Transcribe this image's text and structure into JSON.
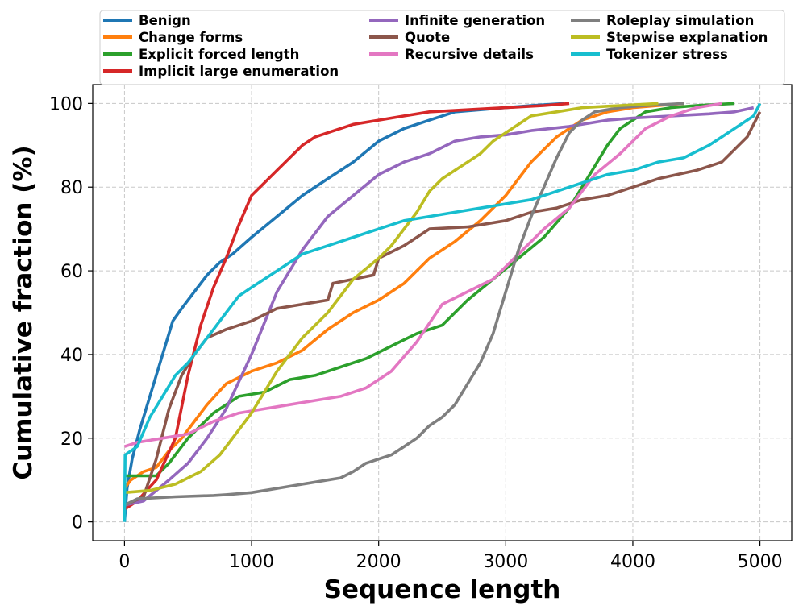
{
  "chart_data": {
    "type": "line",
    "title": "",
    "xlabel": "Sequence length",
    "ylabel": "Cumulative fraction (%)",
    "xlim": [
      -250,
      5250
    ],
    "ylim": [
      -4.5,
      104.5
    ],
    "xticks": [
      0,
      1000,
      2000,
      3000,
      4000,
      5000
    ],
    "yticks": [
      0,
      20,
      40,
      60,
      80,
      100
    ],
    "grid": true,
    "legend_position": "top",
    "series": [
      {
        "name": "Benign",
        "color": "#1f77b4",
        "x": [
          0,
          20,
          60,
          120,
          200,
          300,
          380,
          450,
          550,
          650,
          750,
          850,
          1000,
          1200,
          1400,
          1600,
          1800,
          2000,
          2200,
          2400,
          2600,
          2800,
          3000,
          3200,
          3460
        ],
        "y": [
          0,
          8,
          15,
          22,
          30,
          40,
          48,
          51,
          55,
          59,
          62,
          64,
          68,
          73,
          78,
          82,
          86,
          91,
          94,
          96,
          98,
          98.5,
          99,
          99.5,
          100
        ]
      },
      {
        "name": "Change forms",
        "color": "#ff7f0e",
        "x": [
          0,
          50,
          150,
          250,
          350,
          450,
          550,
          650,
          800,
          1000,
          1200,
          1400,
          1600,
          1800,
          2000,
          2200,
          2400,
          2600,
          2800,
          3000,
          3200,
          3400,
          3600,
          3800,
          4000,
          4200,
          4400
        ],
        "y": [
          8,
          10,
          12,
          13,
          17,
          20,
          24,
          28,
          33,
          36,
          38,
          41,
          46,
          50,
          53,
          57,
          63,
          67,
          72,
          78,
          86,
          92,
          96,
          98,
          99,
          99.5,
          100
        ]
      },
      {
        "name": "Explicit forced length",
        "color": "#2ca02c",
        "x": [
          0,
          250,
          350,
          500,
          700,
          900,
          1100,
          1300,
          1500,
          1700,
          1900,
          2100,
          2300,
          2500,
          2700,
          2900,
          3100,
          3300,
          3500,
          3700,
          3800,
          3900,
          4100,
          4300,
          4500,
          4800
        ],
        "y": [
          11,
          11,
          14,
          20,
          26,
          30,
          31,
          34,
          35,
          37,
          39,
          42,
          45,
          47,
          53,
          58,
          63,
          68,
          75,
          85,
          90,
          94,
          98,
          99,
          99.5,
          100
        ]
      },
      {
        "name": "Implicit large enumeration",
        "color": "#d62728",
        "x": [
          0,
          100,
          250,
          400,
          500,
          600,
          700,
          800,
          900,
          1000,
          1100,
          1200,
          1300,
          1400,
          1500,
          1600,
          1800,
          2000,
          2200,
          2400,
          2700,
          3000,
          3300,
          3500
        ],
        "y": [
          3,
          5,
          10,
          20,
          35,
          47,
          56,
          63,
          71,
          78,
          81,
          84,
          87,
          90,
          92,
          93,
          95,
          96,
          97,
          98,
          98.5,
          99,
          99.5,
          100
        ]
      },
      {
        "name": "Infinite generation",
        "color": "#9467bd",
        "x": [
          0,
          150,
          350,
          500,
          650,
          800,
          1000,
          1200,
          1400,
          1600,
          1800,
          2000,
          2200,
          2400,
          2600,
          2800,
          3000,
          3200,
          3500,
          3800,
          4000,
          4300,
          4600,
          4800,
          4950
        ],
        "y": [
          4,
          5,
          10,
          14,
          20,
          27,
          40,
          55,
          65,
          73,
          78,
          83,
          86,
          88,
          91,
          92,
          92.5,
          93.5,
          94.5,
          96,
          96.5,
          97,
          97.5,
          98,
          99
        ]
      },
      {
        "name": "Quote",
        "color": "#8c564b",
        "x": [
          0,
          150,
          250,
          350,
          450,
          550,
          650,
          800,
          1000,
          1200,
          1400,
          1600,
          1640,
          1800,
          1960,
          2000,
          2200,
          2400,
          2700,
          3000,
          3200,
          3400,
          3600,
          3800,
          4000,
          4200,
          4500,
          4700,
          4900,
          5000
        ],
        "y": [
          4,
          6,
          15,
          27,
          35,
          40,
          44,
          46,
          48,
          51,
          52,
          53,
          57,
          58,
          59,
          63,
          66,
          70,
          70.5,
          72,
          74,
          75,
          77,
          78,
          80,
          82,
          84,
          86,
          92,
          98
        ]
      },
      {
        "name": "Recursive details",
        "color": "#e377c2",
        "x": [
          0,
          100,
          300,
          500,
          700,
          900,
          1100,
          1300,
          1500,
          1700,
          1900,
          2100,
          2300,
          2500,
          2700,
          2900,
          3100,
          3300,
          3500,
          3700,
          3900,
          4100,
          4300,
          4500,
          4700
        ],
        "y": [
          18,
          19,
          20,
          21,
          24,
          26,
          27,
          28,
          29,
          30,
          32,
          36,
          43,
          52,
          55,
          58,
          64,
          70,
          75,
          83,
          88,
          94,
          97,
          99,
          100
        ]
      },
      {
        "name": "Roleplay simulation",
        "color": "#7f7f7f",
        "x": [
          0,
          100,
          400,
          700,
          800,
          1000,
          1200,
          1400,
          1600,
          1700,
          1800,
          1900,
          2000,
          2100,
          2200,
          2300,
          2400,
          2500,
          2600,
          2700,
          2800,
          2900,
          3000,
          3100,
          3200,
          3300,
          3400,
          3500,
          3600,
          3700,
          3900,
          4100,
          4400
        ],
        "y": [
          4,
          5.5,
          6,
          6.3,
          6.5,
          7,
          8,
          9,
          10,
          10.5,
          12,
          14,
          15,
          16,
          18,
          20,
          23,
          25,
          28,
          33,
          38,
          45,
          55,
          65,
          73,
          80,
          87,
          93,
          96,
          98,
          99,
          99.5,
          100
        ]
      },
      {
        "name": "Stepwise explanation",
        "color": "#bcbd22",
        "x": [
          0,
          200,
          400,
          600,
          750,
          900,
          1000,
          1100,
          1200,
          1300,
          1400,
          1600,
          1800,
          2000,
          2100,
          2200,
          2300,
          2400,
          2500,
          2600,
          2700,
          2800,
          2900,
          3000,
          3100,
          3200,
          3400,
          3600,
          3900,
          4200
        ],
        "y": [
          7,
          7.5,
          9,
          12,
          16,
          22,
          26,
          31,
          36,
          40,
          44,
          50,
          58,
          63,
          66,
          70,
          74,
          79,
          82,
          84,
          86,
          88,
          91,
          93,
          95,
          97,
          98,
          99,
          99.5,
          100
        ]
      },
      {
        "name": "Tokenizer stress",
        "color": "#17becf",
        "x": [
          0,
          5,
          100,
          200,
          300,
          400,
          500,
          600,
          700,
          800,
          900,
          1000,
          1200,
          1400,
          1600,
          1800,
          2000,
          2200,
          2400,
          2600,
          2800,
          3000,
          3200,
          3400,
          3600,
          3800,
          4000,
          4200,
          4400,
          4600,
          4800,
          4950,
          5000
        ],
        "y": [
          0,
          16,
          18,
          25,
          30,
          35,
          38,
          42,
          46,
          50,
          54,
          56,
          60,
          64,
          66,
          68,
          70,
          72,
          73,
          74,
          75,
          76,
          77,
          79,
          81,
          83,
          84,
          86,
          87,
          90,
          94,
          97,
          100
        ]
      }
    ]
  }
}
